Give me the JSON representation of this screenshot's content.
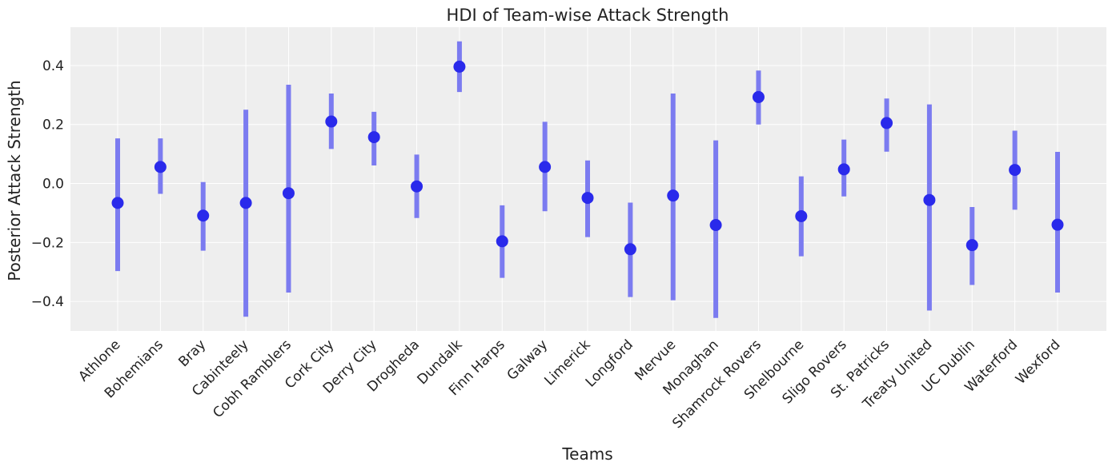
{
  "chart_data": {
    "type": "errorbar",
    "title": "HDI of Team-wise Attack Strength",
    "xlabel": "Teams",
    "ylabel": "Posterior Attack Strength",
    "ylim": [
      -0.5,
      0.53
    ],
    "yticks": [
      -0.4,
      -0.2,
      0.0,
      0.2,
      0.4
    ],
    "ytick_labels": [
      "−0.4",
      "−0.2",
      "0.0",
      "0.2",
      "0.4"
    ],
    "grid": true,
    "colors": {
      "point": "#2a2aeb",
      "interval": "#7b7bf0",
      "background": "#eeeeee",
      "grid": "#ffffff"
    },
    "categories": [
      "Athlone",
      "Bohemians",
      "Bray",
      "Cabinteely",
      "Cobh Ramblers",
      "Cork City",
      "Derry City",
      "Drogheda",
      "Dundalk",
      "Finn Harps",
      "Galway",
      "Limerick",
      "Longford",
      "Mervue",
      "Monaghan",
      "Shamrock Rovers",
      "Shelbourne",
      "Sligo Rovers",
      "St. Patricks",
      "Treaty United",
      "UC Dublin",
      "Waterford",
      "Wexford"
    ],
    "means": [
      -0.066,
      0.056,
      -0.109,
      -0.066,
      -0.033,
      0.21,
      0.157,
      -0.01,
      0.396,
      -0.196,
      0.056,
      -0.049,
      -0.223,
      -0.041,
      -0.141,
      0.293,
      -0.111,
      0.048,
      0.205,
      -0.056,
      -0.209,
      0.046,
      -0.14
    ],
    "hdi_low": [
      -0.297,
      -0.035,
      -0.228,
      -0.452,
      -0.37,
      0.117,
      0.061,
      -0.117,
      0.31,
      -0.32,
      -0.094,
      -0.182,
      -0.385,
      -0.396,
      -0.456,
      0.2,
      -0.247,
      -0.044,
      0.108,
      -0.431,
      -0.344,
      -0.089,
      -0.37
    ],
    "hdi_high": [
      0.153,
      0.153,
      0.005,
      0.25,
      0.335,
      0.305,
      0.243,
      0.098,
      0.482,
      -0.074,
      0.209,
      0.078,
      -0.065,
      0.305,
      0.146,
      0.383,
      0.024,
      0.149,
      0.288,
      0.268,
      -0.08,
      0.179,
      0.107
    ]
  }
}
